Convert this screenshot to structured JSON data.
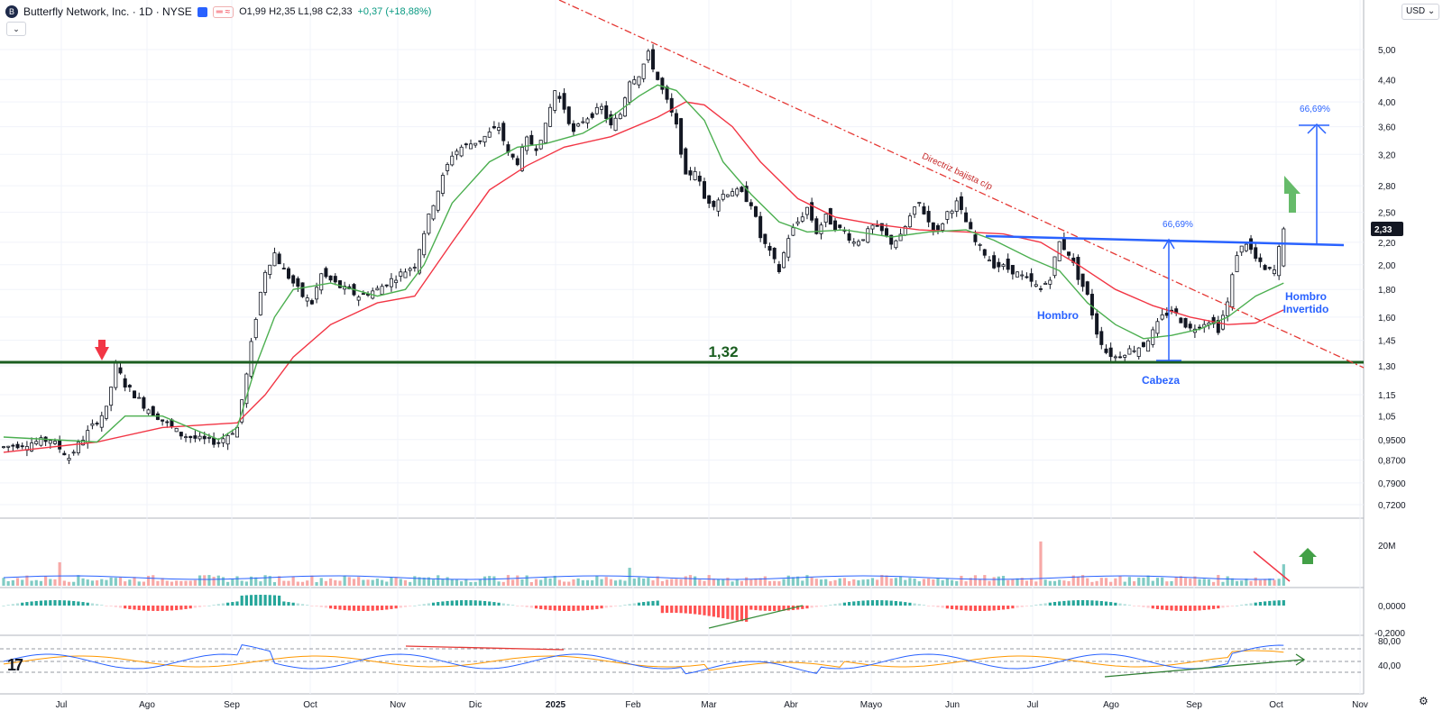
{
  "header": {
    "logo_glyph": "B",
    "title": "Butterfly Network, Inc. · 1D · NYSE",
    "pill": "═ ≈",
    "ohlc": "O1,99 H2,35 L1,98 C2,33",
    "change": "+0,37 (+18,88%)",
    "collapse_icon": "⌄",
    "currency": "USD ⌄",
    "tv_logo": "17",
    "settings_icon": "⚙"
  },
  "chart_data": {
    "type": "candlestick",
    "symbol": "Butterfly Network, Inc.",
    "interval": "1D",
    "exchange": "NYSE",
    "scale": "log",
    "grid": true,
    "y_ticks": [
      5.0,
      4.4,
      4.0,
      3.6,
      3.2,
      2.8,
      2.5,
      2.2,
      2.0,
      1.8,
      1.6,
      1.45,
      1.3,
      1.15,
      1.05,
      0.95,
      0.87,
      0.79,
      0.72
    ],
    "y_tick_labels": [
      "5,00",
      "4,40",
      "4,00",
      "3,60",
      "3,20",
      "2,80",
      "2,50",
      "2,20",
      "2,00",
      "1,80",
      "1,60",
      "1,45",
      "1,30",
      "1,15",
      "1,05",
      "0,9500",
      "0,8700",
      "0,7900",
      "0,7200"
    ],
    "last_price": 2.33,
    "last_price_label": "2,33",
    "x_labels": [
      "Jul",
      "Ago",
      "Sep",
      "Oct",
      "Nov",
      "Dic",
      "2025",
      "Feb",
      "Mar",
      "Abr",
      "Mayo",
      "Jun",
      "Jul",
      "Ago",
      "Sep",
      "Oct",
      "Nov"
    ],
    "price_path": [
      [
        0,
        0.92
      ],
      [
        10,
        0.95
      ],
      [
        14,
        0.88
      ],
      [
        18,
        0.98
      ],
      [
        22,
        1.08
      ],
      [
        24,
        1.3
      ],
      [
        26,
        1.2
      ],
      [
        30,
        1.1
      ],
      [
        34,
        1.03
      ],
      [
        38,
        0.97
      ],
      [
        42,
        0.95
      ],
      [
        46,
        0.94
      ],
      [
        50,
        1.0
      ],
      [
        52,
        1.25
      ],
      [
        54,
        1.6
      ],
      [
        56,
        1.95
      ],
      [
        58,
        2.1
      ],
      [
        60,
        1.95
      ],
      [
        64,
        1.75
      ],
      [
        66,
        1.7
      ],
      [
        68,
        1.92
      ],
      [
        72,
        1.82
      ],
      [
        76,
        1.75
      ],
      [
        80,
        1.8
      ],
      [
        84,
        1.9
      ],
      [
        88,
        2.0
      ],
      [
        90,
        2.3
      ],
      [
        92,
        2.6
      ],
      [
        94,
        2.9
      ],
      [
        96,
        3.2
      ],
      [
        98,
        3.3
      ],
      [
        102,
        3.4
      ],
      [
        106,
        3.6
      ],
      [
        108,
        3.2
      ],
      [
        110,
        3.1
      ],
      [
        112,
        3.4
      ],
      [
        114,
        3.3
      ],
      [
        116,
        3.6
      ],
      [
        118,
        4.2
      ],
      [
        120,
        3.9
      ],
      [
        122,
        3.5
      ],
      [
        124,
        3.7
      ],
      [
        126,
        3.8
      ],
      [
        128,
        3.9
      ],
      [
        130,
        3.6
      ],
      [
        132,
        3.8
      ],
      [
        134,
        4.4
      ],
      [
        136,
        4.5
      ],
      [
        138,
        4.9
      ],
      [
        140,
        4.4
      ],
      [
        142,
        4.0
      ],
      [
        144,
        3.6
      ],
      [
        146,
        2.9
      ],
      [
        148,
        3.0
      ],
      [
        150,
        2.65
      ],
      [
        152,
        2.6
      ],
      [
        154,
        2.7
      ],
      [
        156,
        2.75
      ],
      [
        158,
        2.7
      ],
      [
        160,
        2.6
      ],
      [
        162,
        2.25
      ],
      [
        164,
        2.1
      ],
      [
        166,
        1.95
      ],
      [
        168,
        2.25
      ],
      [
        170,
        2.4
      ],
      [
        172,
        2.55
      ],
      [
        174,
        2.3
      ],
      [
        176,
        2.45
      ],
      [
        178,
        2.35
      ],
      [
        180,
        2.3
      ],
      [
        182,
        2.2
      ],
      [
        184,
        2.25
      ],
      [
        186,
        2.35
      ],
      [
        188,
        2.3
      ],
      [
        190,
        2.2
      ],
      [
        192,
        2.25
      ],
      [
        194,
        2.45
      ],
      [
        196,
        2.6
      ],
      [
        198,
        2.4
      ],
      [
        200,
        2.3
      ],
      [
        202,
        2.5
      ],
      [
        204,
        2.6
      ],
      [
        206,
        2.4
      ],
      [
        208,
        2.2
      ],
      [
        210,
        2.1
      ],
      [
        212,
        2.0
      ],
      [
        214,
        1.98
      ],
      [
        216,
        1.95
      ],
      [
        218,
        1.9
      ],
      [
        220,
        1.85
      ],
      [
        222,
        1.8
      ],
      [
        224,
        1.9
      ],
      [
        226,
        2.2
      ],
      [
        228,
        2.1
      ],
      [
        230,
        1.9
      ],
      [
        232,
        1.75
      ],
      [
        234,
        1.5
      ],
      [
        236,
        1.38
      ],
      [
        238,
        1.35
      ],
      [
        240,
        1.38
      ],
      [
        242,
        1.4
      ],
      [
        244,
        1.42
      ],
      [
        246,
        1.5
      ],
      [
        248,
        1.6
      ],
      [
        250,
        1.65
      ],
      [
        252,
        1.58
      ],
      [
        254,
        1.52
      ],
      [
        256,
        1.55
      ],
      [
        258,
        1.58
      ],
      [
        260,
        1.52
      ],
      [
        262,
        1.7
      ],
      [
        264,
        2.1
      ],
      [
        266,
        2.2
      ],
      [
        268,
        2.05
      ],
      [
        270,
        1.95
      ],
      [
        272,
        1.95
      ],
      [
        274,
        2.33
      ]
    ],
    "ma_green": [
      [
        0,
        0.96
      ],
      [
        20,
        0.94
      ],
      [
        26,
        1.05
      ],
      [
        34,
        1.05
      ],
      [
        46,
        0.95
      ],
      [
        50,
        1.0
      ],
      [
        54,
        1.3
      ],
      [
        58,
        1.6
      ],
      [
        62,
        1.8
      ],
      [
        70,
        1.85
      ],
      [
        80,
        1.75
      ],
      [
        86,
        1.8
      ],
      [
        90,
        2.0
      ],
      [
        96,
        2.6
      ],
      [
        104,
        3.1
      ],
      [
        110,
        3.3
      ],
      [
        116,
        3.35
      ],
      [
        124,
        3.5
      ],
      [
        130,
        3.75
      ],
      [
        136,
        4.1
      ],
      [
        140,
        4.3
      ],
      [
        144,
        4.2
      ],
      [
        150,
        3.7
      ],
      [
        154,
        3.1
      ],
      [
        160,
        2.7
      ],
      [
        166,
        2.4
      ],
      [
        172,
        2.3
      ],
      [
        180,
        2.32
      ],
      [
        190,
        2.25
      ],
      [
        198,
        2.3
      ],
      [
        206,
        2.32
      ],
      [
        212,
        2.22
      ],
      [
        220,
        2.05
      ],
      [
        226,
        1.95
      ],
      [
        232,
        1.7
      ],
      [
        238,
        1.55
      ],
      [
        244,
        1.46
      ],
      [
        250,
        1.48
      ],
      [
        256,
        1.52
      ],
      [
        262,
        1.6
      ],
      [
        268,
        1.75
      ],
      [
        274,
        1.85
      ]
    ],
    "ma_red": [
      [
        0,
        0.9
      ],
      [
        20,
        0.94
      ],
      [
        34,
        1.0
      ],
      [
        50,
        1.02
      ],
      [
        56,
        1.15
      ],
      [
        62,
        1.35
      ],
      [
        70,
        1.55
      ],
      [
        80,
        1.7
      ],
      [
        88,
        1.75
      ],
      [
        96,
        2.2
      ],
      [
        104,
        2.75
      ],
      [
        112,
        3.05
      ],
      [
        120,
        3.3
      ],
      [
        130,
        3.45
      ],
      [
        140,
        3.75
      ],
      [
        146,
        4.0
      ],
      [
        150,
        3.95
      ],
      [
        156,
        3.6
      ],
      [
        162,
        3.1
      ],
      [
        170,
        2.65
      ],
      [
        178,
        2.45
      ],
      [
        186,
        2.38
      ],
      [
        196,
        2.32
      ],
      [
        206,
        2.3
      ],
      [
        214,
        2.28
      ],
      [
        222,
        2.2
      ],
      [
        230,
        2.0
      ],
      [
        238,
        1.8
      ],
      [
        246,
        1.68
      ],
      [
        254,
        1.6
      ],
      [
        262,
        1.55
      ],
      [
        268,
        1.56
      ],
      [
        274,
        1.65
      ]
    ],
    "horizontal_support": {
      "value": 1.32,
      "label": "1,32"
    },
    "downtrend_line": {
      "label": "Directriz bajista c/p"
    },
    "neckline": {},
    "measure_labels": [
      "66,69%",
      "66,69%"
    ],
    "pattern_labels": {
      "left_shoulder": "Hombro",
      "head": "Cabeza",
      "right_shoulder": "Hombro Invertido"
    },
    "volume_panel": {
      "tick_label": "20M"
    },
    "macd_panel": {
      "tick_labels": [
        "0,0000",
        "-0,2000"
      ]
    },
    "rsi_panel": {
      "tick_labels": [
        "80,00",
        "40,00"
      ]
    }
  }
}
